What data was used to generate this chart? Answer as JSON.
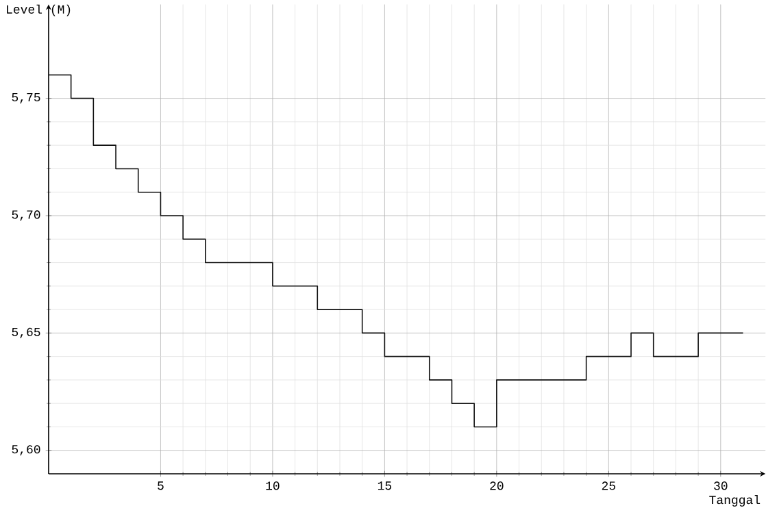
{
  "chart_data": {
    "type": "step",
    "ylabel": "Level (M)",
    "xlabel": "Tanggal",
    "x": [
      0,
      1,
      2,
      3,
      4,
      5,
      6,
      7,
      10,
      12,
      14,
      15,
      17,
      18,
      19,
      20,
      24,
      26,
      27,
      29,
      31
    ],
    "values": [
      5.76,
      5.75,
      5.73,
      5.72,
      5.71,
      5.7,
      5.69,
      5.68,
      5.67,
      5.66,
      5.65,
      5.64,
      5.63,
      5.62,
      5.61,
      5.63,
      5.64,
      5.65,
      5.64,
      5.65,
      5.65
    ],
    "color": "#111111",
    "xlim": [
      0,
      32
    ],
    "ylim": [
      5.59,
      5.79
    ],
    "xticks": [
      5,
      10,
      15,
      20,
      25,
      30
    ],
    "yticks": [
      {
        "value": 5.6,
        "label": "5,60"
      },
      {
        "value": 5.65,
        "label": "5,65"
      },
      {
        "value": 5.7,
        "label": "5,70"
      },
      {
        "value": 5.75,
        "label": "5,75"
      }
    ],
    "grid": true
  }
}
